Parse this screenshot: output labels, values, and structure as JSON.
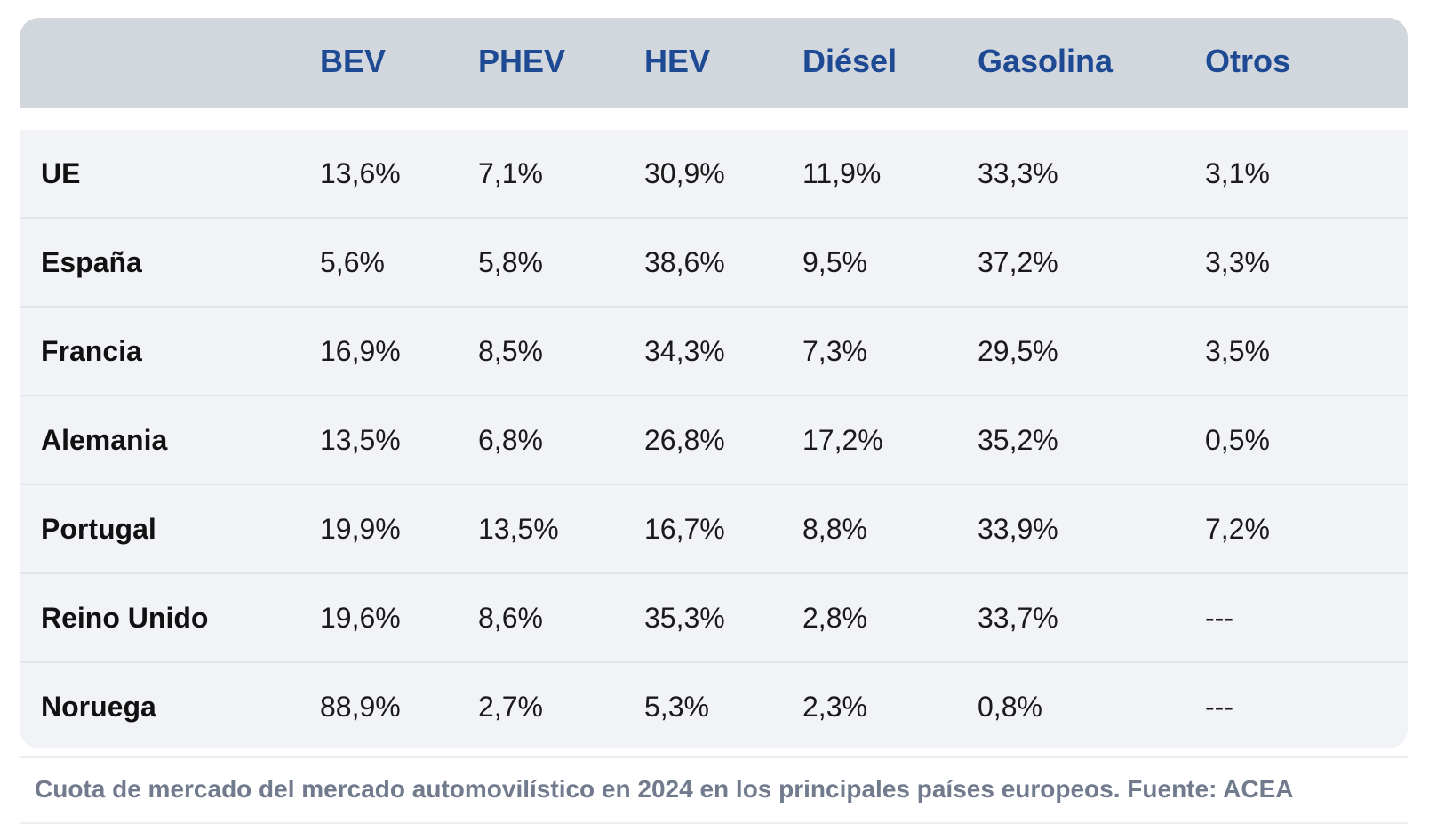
{
  "table": {
    "headers": [
      "",
      "BEV",
      "PHEV",
      "HEV",
      "Diésel",
      "Gasolina",
      "Otros"
    ],
    "rows": [
      [
        "UE",
        "13,6%",
        "7,1%",
        "30,9%",
        "11,9%",
        "33,3%",
        "3,1%"
      ],
      [
        "España",
        "5,6%",
        "5,8%",
        "38,6%",
        "9,5%",
        "37,2%",
        "3,3%"
      ],
      [
        "Francia",
        "16,9%",
        "8,5%",
        "34,3%",
        "7,3%",
        "29,5%",
        "3,5%"
      ],
      [
        "Alemania",
        "13,5%",
        "6,8%",
        "26,8%",
        "17,2%",
        "35,2%",
        "0,5%"
      ],
      [
        "Portugal",
        "19,9%",
        "13,5%",
        "16,7%",
        "8,8%",
        "33,9%",
        "7,2%"
      ],
      [
        "Reino Unido",
        "19,6%",
        "8,6%",
        "35,3%",
        "2,8%",
        "33,7%",
        "---"
      ],
      [
        "Noruega",
        "88,9%",
        "2,7%",
        "5,3%",
        "2,3%",
        "0,8%",
        "---"
      ]
    ]
  },
  "caption": "Cuota de mercado del mercado automovilístico en 2024 en los principales países europeos. Fuente: ACEA",
  "colors": {
    "header_bg": "#d2d7de",
    "header_text": "#1e4a94",
    "body_bg": "#f1f3f7",
    "caption_text": "#717b8d"
  }
}
